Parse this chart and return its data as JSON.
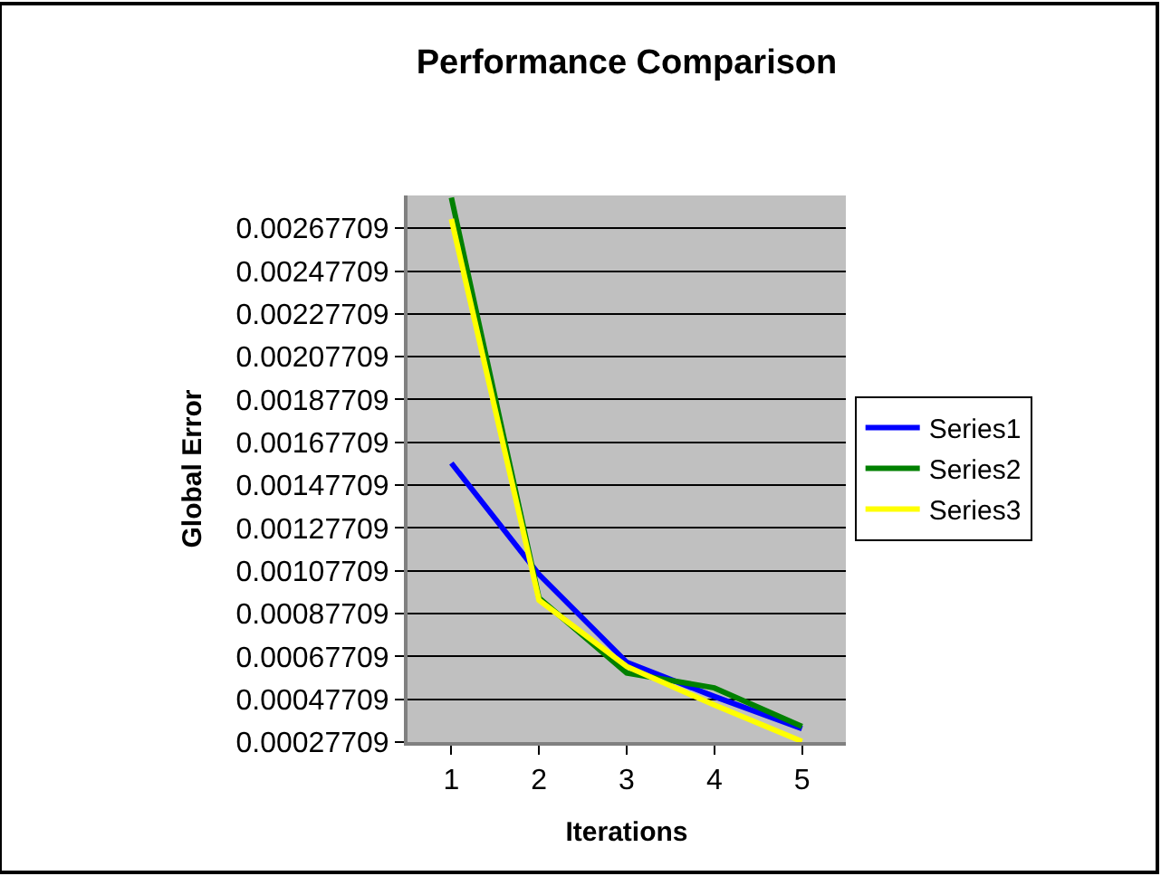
{
  "chart_data": {
    "type": "line",
    "title": "Performance Comparison",
    "xlabel": "Iterations",
    "ylabel": "Global Error",
    "categories": [
      "1",
      "2",
      "3",
      "4",
      "5"
    ],
    "series": [
      {
        "name": "Series1",
        "color": "#0000ff",
        "values": [
          0.00158,
          0.00106,
          0.00065,
          0.00049,
          0.00034
        ]
      },
      {
        "name": "Series2",
        "color": "#008000",
        "values": [
          0.00282,
          0.00095,
          0.0006,
          0.00053,
          0.00035
        ]
      },
      {
        "name": "Series3",
        "color": "#ffff00",
        "values": [
          0.00272,
          0.00094,
          0.00063,
          0.00045,
          0.00028
        ]
      }
    ],
    "ylim": [
      0.00027709,
      0.00283
    ],
    "yticks": [
      0.00027709,
      0.00047709,
      0.00067709,
      0.00087709,
      0.00107709,
      0.00127709,
      0.00147709,
      0.00167709,
      0.00187709,
      0.00207709,
      0.00227709,
      0.00247709,
      0.00267709
    ],
    "grid": "y",
    "legend": "right",
    "marker": "none",
    "line_style": "solid"
  }
}
